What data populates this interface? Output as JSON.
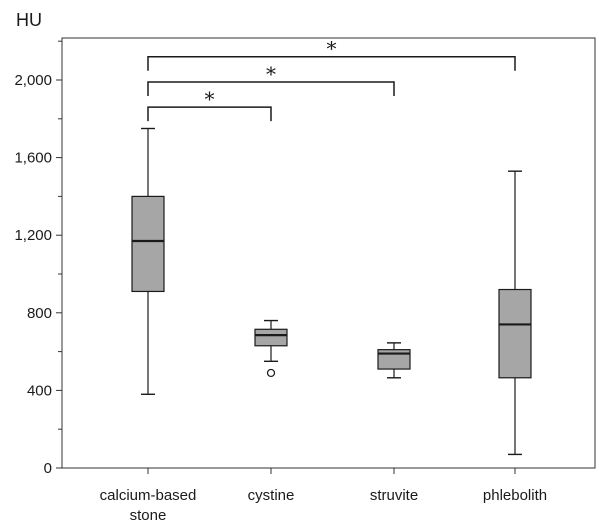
{
  "chart_data": {
    "type": "boxplot",
    "unit_label": "HU",
    "ylim": [
      0,
      2200
    ],
    "y_ticks": [
      {
        "value": 0,
        "label": "0"
      },
      {
        "value": 400,
        "label": "400"
      },
      {
        "value": 800,
        "label": "800"
      },
      {
        "value": 1200,
        "label": "1,200"
      },
      {
        "value": 1600,
        "label": "1,600"
      },
      {
        "value": 2000,
        "label": "2,000"
      }
    ],
    "y_minor_ticks": [
      200,
      600,
      1000,
      1400,
      1800,
      2200
    ],
    "categories": [
      {
        "lines": [
          "calcium-based",
          "stone"
        ],
        "whisker_low": 380,
        "q1": 910,
        "median": 1170,
        "q3": 1400,
        "whisker_high": 1750,
        "outliers": []
      },
      {
        "lines": [
          "cystine"
        ],
        "whisker_low": 550,
        "q1": 630,
        "median": 685,
        "q3": 715,
        "whisker_high": 760,
        "outliers": [
          490
        ]
      },
      {
        "lines": [
          "struvite"
        ],
        "whisker_low": 465,
        "q1": 510,
        "median": 590,
        "q3": 610,
        "whisker_high": 645,
        "outliers": []
      },
      {
        "lines": [
          "phlebolith"
        ],
        "whisker_low": 70,
        "q1": 465,
        "median": 740,
        "q3": 920,
        "whisker_high": 1530,
        "outliers": []
      }
    ],
    "significance": [
      {
        "from": 0,
        "to": 1,
        "label": "*",
        "y": 1860
      },
      {
        "from": 0,
        "to": 2,
        "label": "*",
        "y": 1990
      },
      {
        "from": 0,
        "to": 3,
        "label": "*",
        "y": 2120
      }
    ],
    "grid": false,
    "colors": {
      "box_fill": "#a6a6a6",
      "line": "#1a1a1a",
      "axis": "#333333"
    }
  }
}
